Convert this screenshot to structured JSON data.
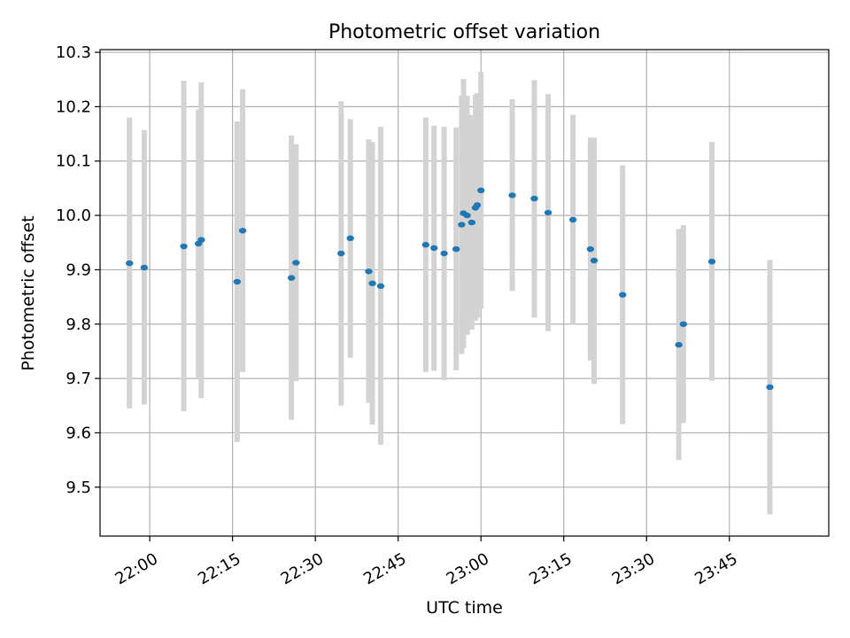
{
  "chart_data": {
    "type": "scatter",
    "title": "Photometric offset variation",
    "xlabel": "UTC time",
    "ylabel": "Photometric offset",
    "xlim": [
      "21:51",
      "00:03"
    ],
    "ylim": [
      9.41,
      10.305
    ],
    "x_ticks": [
      "22:00",
      "22:15",
      "22:30",
      "22:45",
      "23:00",
      "23:15",
      "23:30",
      "23:45"
    ],
    "y_ticks": [
      "9.5",
      "9.6",
      "9.7",
      "9.8",
      "9.9",
      "10.0",
      "10.1",
      "10.2",
      "10.3"
    ],
    "grid": true,
    "colors": {
      "marker": "#1f77b4",
      "errorbar": "#d3d3d3",
      "grid": "#b0b0b0",
      "axes": "#000000"
    },
    "points": [
      {
        "t": "21:56:20",
        "y": 9.912,
        "low": 9.645,
        "high": 10.18
      },
      {
        "t": "21:59:00",
        "y": 9.904,
        "low": 9.652,
        "high": 10.157
      },
      {
        "t": "22:06:10",
        "y": 9.943,
        "low": 9.64,
        "high": 10.248
      },
      {
        "t": "22:08:50",
        "y": 9.948,
        "low": 9.7,
        "high": 10.195
      },
      {
        "t": "22:09:20",
        "y": 9.955,
        "low": 9.664,
        "high": 10.245
      },
      {
        "t": "22:15:50",
        "y": 9.878,
        "low": 9.583,
        "high": 10.173
      },
      {
        "t": "22:16:50",
        "y": 9.972,
        "low": 9.712,
        "high": 10.232
      },
      {
        "t": "22:25:40",
        "y": 9.885,
        "low": 9.624,
        "high": 10.147
      },
      {
        "t": "22:26:30",
        "y": 9.913,
        "low": 9.695,
        "high": 10.131
      },
      {
        "t": "22:34:40",
        "y": 9.93,
        "low": 9.65,
        "high": 10.21
      },
      {
        "t": "22:36:20",
        "y": 9.958,
        "low": 9.738,
        "high": 10.177
      },
      {
        "t": "22:39:40",
        "y": 9.897,
        "low": 9.655,
        "high": 10.14
      },
      {
        "t": "22:40:20",
        "y": 9.875,
        "low": 9.615,
        "high": 10.135
      },
      {
        "t": "22:41:50",
        "y": 9.87,
        "low": 9.578,
        "high": 10.163
      },
      {
        "t": "22:50:00",
        "y": 9.946,
        "low": 9.712,
        "high": 10.18
      },
      {
        "t": "22:51:30",
        "y": 9.94,
        "low": 9.714,
        "high": 10.165
      },
      {
        "t": "22:53:20",
        "y": 9.93,
        "low": 9.697,
        "high": 10.163
      },
      {
        "t": "22:55:30",
        "y": 9.938,
        "low": 9.715,
        "high": 10.162
      },
      {
        "t": "22:56:30",
        "y": 9.983,
        "low": 9.745,
        "high": 10.22
      },
      {
        "t": "22:56:50",
        "y": 10.004,
        "low": 9.756,
        "high": 10.251
      },
      {
        "t": "22:57:30",
        "y": 10.0,
        "low": 9.78,
        "high": 10.22
      },
      {
        "t": "22:58:20",
        "y": 9.987,
        "low": 9.79,
        "high": 10.185
      },
      {
        "t": "22:59:00",
        "y": 10.014,
        "low": 9.806,
        "high": 10.222
      },
      {
        "t": "22:59:20",
        "y": 10.019,
        "low": 9.812,
        "high": 10.225
      },
      {
        "t": "23:00:00",
        "y": 10.046,
        "low": 9.828,
        "high": 10.264
      },
      {
        "t": "23:05:40",
        "y": 10.037,
        "low": 9.861,
        "high": 10.214
      },
      {
        "t": "23:09:40",
        "y": 10.031,
        "low": 9.812,
        "high": 10.249
      },
      {
        "t": "23:12:10",
        "y": 10.005,
        "low": 9.787,
        "high": 10.223
      },
      {
        "t": "23:16:40",
        "y": 9.992,
        "low": 9.8,
        "high": 10.185
      },
      {
        "t": "23:19:50",
        "y": 9.938,
        "low": 9.733,
        "high": 10.143
      },
      {
        "t": "23:20:30",
        "y": 9.917,
        "low": 9.69,
        "high": 10.143
      },
      {
        "t": "23:25:40",
        "y": 9.854,
        "low": 9.616,
        "high": 10.092
      },
      {
        "t": "23:35:50",
        "y": 9.762,
        "low": 9.55,
        "high": 9.975
      },
      {
        "t": "23:36:40",
        "y": 9.8,
        "low": 9.618,
        "high": 9.982
      },
      {
        "t": "23:41:50",
        "y": 9.915,
        "low": 9.696,
        "high": 10.135
      },
      {
        "t": "23:52:20",
        "y": 9.684,
        "low": 9.45,
        "high": 9.918
      }
    ]
  }
}
